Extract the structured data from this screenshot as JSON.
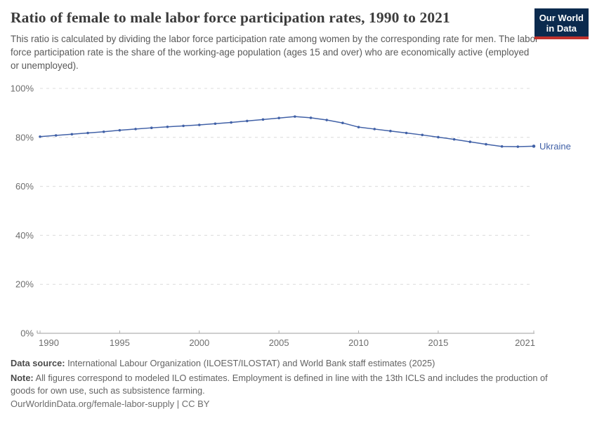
{
  "header": {
    "title": "Ratio of female to male labor force participation rates, 1990 to 2021",
    "subtitle": "This ratio is calculated by dividing the labor force participation rate among women by the corresponding rate for men. The labor force participation rate is the share of the working-age population (ages 15 and over) who are economically active (employed or unemployed).",
    "logo": {
      "line1": "Our World",
      "line2": "in Data",
      "bg_color": "#0b2a4e",
      "accent_color": "#c0312c"
    }
  },
  "chart_data": {
    "type": "line",
    "title": "Ratio of female to male labor force participation rates, 1990 to 2021",
    "xlabel": "",
    "ylabel": "",
    "xlim": [
      1990,
      2021
    ],
    "ylim": [
      0,
      100
    ],
    "x_ticks": [
      1990,
      1995,
      2000,
      2005,
      2010,
      2015,
      2021
    ],
    "y_ticks": [
      0,
      20,
      40,
      60,
      80,
      100
    ],
    "y_tick_suffix": "%",
    "grid": "horizontal-dashed",
    "legend_position": "end-of-line",
    "series": [
      {
        "name": "Ukraine",
        "color": "#4161a7",
        "x": [
          1990,
          1991,
          1992,
          1993,
          1994,
          1995,
          1996,
          1997,
          1998,
          1999,
          2000,
          2001,
          2002,
          2003,
          2004,
          2005,
          2006,
          2007,
          2008,
          2009,
          2010,
          2011,
          2012,
          2013,
          2014,
          2015,
          2016,
          2017,
          2018,
          2019,
          2020,
          2021
        ],
        "values": [
          80.3,
          80.8,
          81.3,
          81.8,
          82.3,
          82.9,
          83.4,
          83.9,
          84.3,
          84.7,
          85.1,
          85.6,
          86.1,
          86.7,
          87.3,
          87.9,
          88.5,
          88.0,
          87.1,
          85.9,
          84.2,
          83.4,
          82.6,
          81.8,
          81.0,
          80.1,
          79.2,
          78.2,
          77.2,
          76.3,
          76.2,
          76.4
        ]
      }
    ]
  },
  "footer": {
    "source_label": "Data source:",
    "source_text": " International Labour Organization (ILOEST/ILOSTAT) and World Bank staff estimates (2025)",
    "note_label": "Note:",
    "note_text": " All figures correspond to modeled ILO estimates. Employment is defined in line with the 13th ICLS and includes the production of goods for own use, such as subsistence farming.",
    "license_text": "OurWorldinData.org/female-labor-supply | CC BY"
  }
}
